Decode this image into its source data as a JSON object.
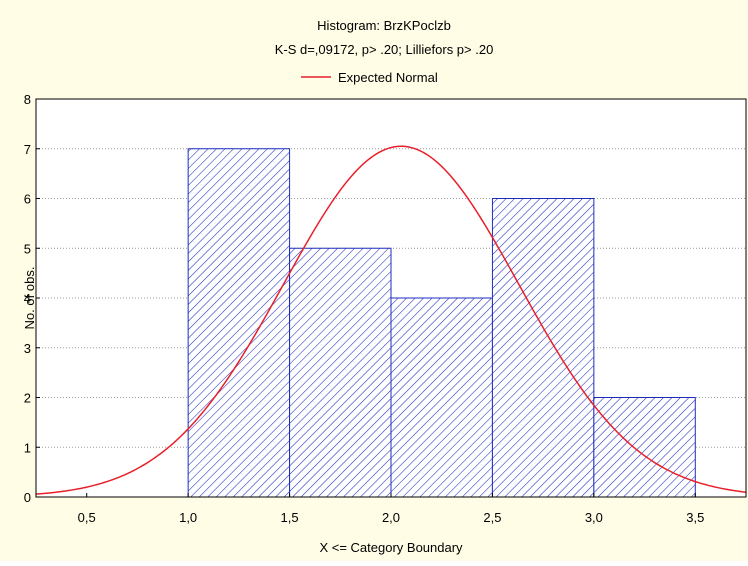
{
  "chart_data": {
    "type": "bar",
    "title": "Histogram: BrzKPoclzb",
    "subtitle": "K-S d=,09172, p> .20; Lilliefors p> .20",
    "legend": [
      {
        "label": "Expected Normal",
        "color": "#e8202a",
        "kind": "line"
      }
    ],
    "legend_position": "top-center",
    "xlabel": "X <= Category Boundary",
    "ylabel": "No. of obs.",
    "xlim": [
      0.25,
      3.75
    ],
    "ylim": [
      0,
      8
    ],
    "x_ticks": [
      0.5,
      1.0,
      1.5,
      2.0,
      2.5,
      3.0,
      3.5
    ],
    "x_tick_labels": [
      "0,5",
      "1,0",
      "1,5",
      "2,0",
      "2,5",
      "3,0",
      "3,5"
    ],
    "y_ticks": [
      0,
      1,
      2,
      3,
      4,
      5,
      6,
      7,
      8
    ],
    "y_tick_labels": [
      "0",
      "1",
      "2",
      "3",
      "4",
      "5",
      "6",
      "7",
      "8"
    ],
    "grid": "horizontal-dotted",
    "bins": [
      {
        "start": 1.0,
        "end": 1.5,
        "value": 7
      },
      {
        "start": 1.5,
        "end": 2.0,
        "value": 5
      },
      {
        "start": 2.0,
        "end": 2.5,
        "value": 4
      },
      {
        "start": 2.5,
        "end": 3.0,
        "value": 6
      },
      {
        "start": 3.0,
        "end": 3.5,
        "value": 2
      }
    ],
    "expected_normal": {
      "mean": 2.05,
      "peak": 7.05,
      "sd": 0.58
    },
    "colors": {
      "bar_fill": "#ffffff",
      "bar_hatch": "#1f2dbf",
      "bar_edge": "#1f2dbf",
      "normal_line": "#e8202a",
      "background": "#fffde6"
    }
  }
}
